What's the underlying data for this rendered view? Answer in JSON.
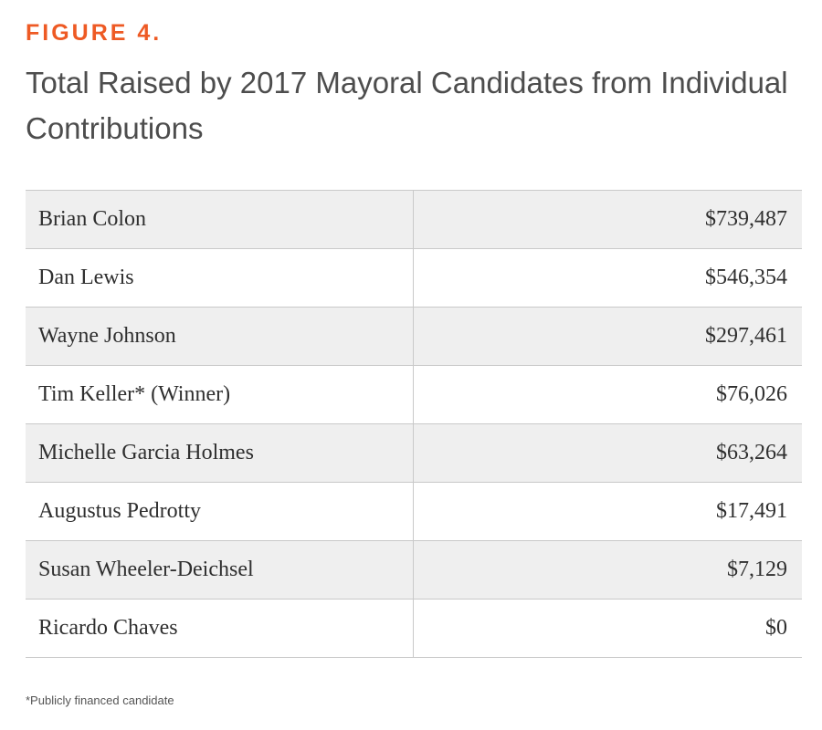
{
  "figure_label": "FIGURE 4.",
  "footnote": "*Publicly financed candidate",
  "chart_data": {
    "type": "table",
    "title": "Total Raised by 2017 Mayoral Candidates from Individual Contributions",
    "rows": [
      {
        "name": "Brian Colon",
        "amount": "$739,487",
        "value": 739487
      },
      {
        "name": "Dan Lewis",
        "amount": "$546,354",
        "value": 546354
      },
      {
        "name": "Wayne Johnson",
        "amount": "$297,461",
        "value": 297461
      },
      {
        "name": "Tim Keller* (Winner)",
        "amount": "$76,026",
        "value": 76026
      },
      {
        "name": "Michelle Garcia Holmes",
        "amount": "$63,264",
        "value": 63264
      },
      {
        "name": "Augustus Pedrotty",
        "amount": "$17,491",
        "value": 17491
      },
      {
        "name": "Susan Wheeler-Deichsel",
        "amount": "$7,129",
        "value": 7129
      },
      {
        "name": "Ricardo Chaves",
        "amount": "$0",
        "value": 0
      }
    ]
  }
}
